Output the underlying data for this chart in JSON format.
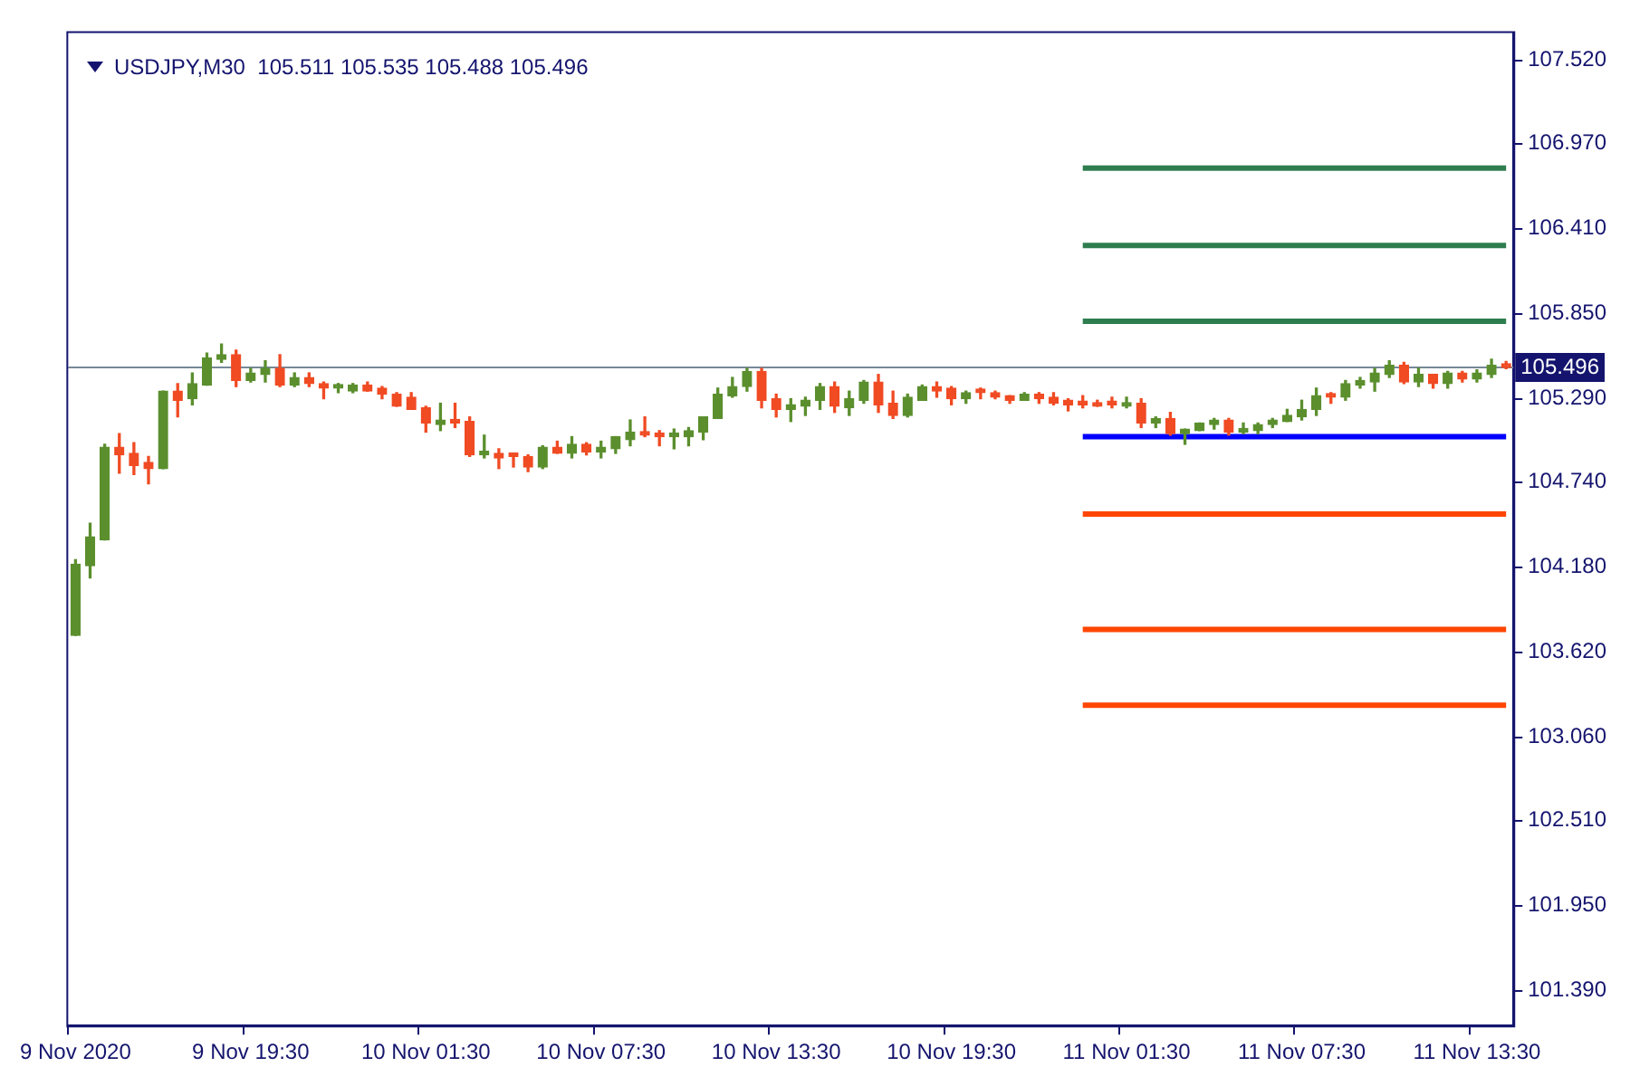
{
  "chart_data": {
    "type": "candlestick",
    "title": "USDJPY,M30  105.511 105.535 105.488 105.496",
    "categories": [
      "9 Nov 2020",
      null,
      null,
      null,
      null,
      null,
      null,
      null,
      null,
      null,
      null,
      null,
      "9 Nov 19:30",
      null,
      null,
      null,
      null,
      null,
      null,
      null,
      null,
      null,
      null,
      null,
      "10 Nov 01:30",
      null,
      null,
      null,
      null,
      null,
      null,
      null,
      null,
      null,
      null,
      null,
      "10 Nov 07:30",
      null,
      null,
      null,
      null,
      null,
      null,
      null,
      null,
      null,
      null,
      null,
      "10 Nov 13:30",
      null,
      null,
      null,
      null,
      null,
      null,
      null,
      null,
      null,
      null,
      null,
      "10 Nov 19:30",
      null,
      null,
      null,
      null,
      null,
      null,
      null,
      null,
      null,
      null,
      null,
      "11 Nov 01:30",
      null,
      null,
      null,
      null,
      null,
      null,
      null,
      null,
      null,
      null,
      null,
      "11 Nov 07:30",
      null,
      null,
      null,
      null,
      null,
      null,
      null,
      null,
      null,
      null,
      null,
      "11 Nov 13:30",
      null,
      null
    ],
    "ohlc": [
      [
        103.73,
        104.23,
        103.73,
        104.2
      ],
      [
        104.19,
        104.47,
        104.11,
        104.38
      ],
      [
        104.36,
        104.99,
        104.36,
        104.97
      ],
      [
        104.97,
        105.06,
        104.8,
        104.92
      ],
      [
        104.93,
        105.0,
        104.79,
        104.85
      ],
      [
        104.87,
        104.91,
        104.73,
        104.83
      ],
      [
        104.83,
        105.34,
        104.83,
        105.34
      ],
      [
        105.34,
        105.39,
        105.17,
        105.28
      ],
      [
        105.29,
        105.46,
        105.25,
        105.39
      ],
      [
        105.38,
        105.59,
        105.38,
        105.56
      ],
      [
        105.55,
        105.65,
        105.53,
        105.58
      ],
      [
        105.58,
        105.61,
        105.37,
        105.41
      ],
      [
        105.41,
        105.49,
        105.4,
        105.46
      ],
      [
        105.45,
        105.54,
        105.4,
        105.49
      ],
      [
        105.49,
        105.58,
        105.37,
        105.38
      ],
      [
        105.38,
        105.46,
        105.37,
        105.43
      ],
      [
        105.43,
        105.46,
        105.37,
        105.39
      ],
      [
        105.39,
        105.4,
        105.29,
        105.36
      ],
      [
        105.36,
        105.39,
        105.33,
        105.38
      ],
      [
        105.34,
        105.39,
        105.33,
        105.38
      ],
      [
        105.38,
        105.4,
        105.34,
        105.34
      ],
      [
        105.36,
        105.37,
        105.29,
        105.32
      ],
      [
        105.32,
        105.33,
        105.24,
        105.24
      ],
      [
        105.3,
        105.33,
        105.22,
        105.22
      ],
      [
        105.23,
        105.24,
        105.07,
        105.13
      ],
      [
        105.12,
        105.26,
        105.08,
        105.15
      ],
      [
        105.15,
        105.26,
        105.1,
        105.13
      ],
      [
        105.14,
        105.17,
        104.91,
        104.92
      ],
      [
        104.92,
        105.05,
        104.9,
        104.93
      ],
      [
        104.93,
        104.96,
        104.83,
        104.9
      ],
      [
        104.92,
        104.93,
        104.84,
        104.91
      ],
      [
        104.91,
        104.92,
        104.81,
        104.84
      ],
      [
        104.84,
        104.98,
        104.83,
        104.97
      ],
      [
        104.97,
        105.01,
        104.93,
        104.93
      ],
      [
        104.93,
        105.04,
        104.9,
        104.99
      ],
      [
        104.99,
        105.0,
        104.92,
        104.94
      ],
      [
        104.94,
        105.01,
        104.9,
        104.97
      ],
      [
        104.96,
        105.04,
        104.93,
        105.04
      ],
      [
        105.02,
        105.15,
        104.98,
        105.07
      ],
      [
        105.07,
        105.17,
        105.04,
        105.05
      ],
      [
        105.06,
        105.08,
        104.98,
        105.04
      ],
      [
        105.04,
        105.09,
        104.96,
        105.05
      ],
      [
        105.04,
        105.1,
        104.98,
        105.08
      ],
      [
        105.07,
        105.17,
        105.02,
        105.17
      ],
      [
        105.16,
        105.36,
        105.16,
        105.32
      ],
      [
        105.31,
        105.43,
        105.3,
        105.37
      ],
      [
        105.37,
        105.49,
        105.34,
        105.47
      ],
      [
        105.47,
        105.49,
        105.23,
        105.28
      ],
      [
        105.29,
        105.32,
        105.17,
        105.22
      ],
      [
        105.22,
        105.29,
        105.14,
        105.25
      ],
      [
        105.24,
        105.3,
        105.18,
        105.28
      ],
      [
        105.28,
        105.39,
        105.22,
        105.37
      ],
      [
        105.37,
        105.4,
        105.2,
        105.24
      ],
      [
        105.23,
        105.34,
        105.18,
        105.29
      ],
      [
        105.28,
        105.41,
        105.26,
        105.4
      ],
      [
        105.4,
        105.45,
        105.2,
        105.25
      ],
      [
        105.26,
        105.34,
        105.16,
        105.18
      ],
      [
        105.18,
        105.32,
        105.17,
        105.3
      ],
      [
        105.28,
        105.38,
        105.28,
        105.37
      ],
      [
        105.37,
        105.4,
        105.3,
        105.34
      ],
      [
        105.36,
        105.37,
        105.25,
        105.29
      ],
      [
        105.29,
        105.34,
        105.26,
        105.33
      ],
      [
        105.34,
        105.36,
        105.29,
        105.33
      ],
      [
        105.33,
        105.34,
        105.29,
        105.3
      ],
      [
        105.31,
        105.31,
        105.26,
        105.28
      ],
      [
        105.28,
        105.33,
        105.28,
        105.32
      ],
      [
        105.32,
        105.33,
        105.26,
        105.29
      ],
      [
        105.3,
        105.33,
        105.25,
        105.26
      ],
      [
        105.28,
        105.29,
        105.21,
        105.25
      ],
      [
        105.26,
        105.31,
        105.23,
        105.25
      ],
      [
        105.26,
        105.28,
        105.24,
        105.24
      ],
      [
        105.26,
        105.3,
        105.23,
        105.25
      ],
      [
        105.24,
        105.3,
        105.23,
        105.26
      ],
      [
        105.26,
        105.29,
        105.1,
        105.13
      ],
      [
        105.13,
        105.17,
        105.1,
        105.16
      ],
      [
        105.16,
        105.2,
        105.05,
        105.06
      ],
      [
        105.06,
        105.09,
        104.99,
        105.09
      ],
      [
        105.08,
        105.13,
        105.08,
        105.13
      ],
      [
        105.12,
        105.16,
        105.09,
        105.15
      ],
      [
        105.15,
        105.16,
        105.05,
        105.07
      ],
      [
        105.07,
        105.13,
        105.06,
        105.09
      ],
      [
        105.08,
        105.13,
        105.06,
        105.12
      ],
      [
        105.12,
        105.16,
        105.1,
        105.15
      ],
      [
        105.14,
        105.22,
        105.14,
        105.18
      ],
      [
        105.17,
        105.28,
        105.15,
        105.22
      ],
      [
        105.22,
        105.36,
        105.18,
        105.31
      ],
      [
        105.31,
        105.33,
        105.26,
        105.3
      ],
      [
        105.3,
        105.41,
        105.28,
        105.39
      ],
      [
        105.38,
        105.43,
        105.36,
        105.41
      ],
      [
        105.4,
        105.49,
        105.34,
        105.46
      ],
      [
        105.45,
        105.54,
        105.43,
        105.51
      ],
      [
        105.51,
        105.53,
        105.39,
        105.4
      ],
      [
        105.4,
        105.49,
        105.37,
        105.45
      ],
      [
        105.45,
        105.45,
        105.36,
        105.39
      ],
      [
        105.39,
        105.47,
        105.36,
        105.46
      ],
      [
        105.46,
        105.47,
        105.4,
        105.42
      ],
      [
        105.42,
        105.48,
        105.4,
        105.46
      ],
      [
        105.45,
        105.55,
        105.43,
        105.51
      ],
      [
        105.511,
        105.535,
        105.488,
        105.496
      ]
    ],
    "series": [
      {
        "type": "line",
        "color": "#2e7d4f",
        "values": [
          null,
          null,
          null,
          null,
          null,
          null,
          null,
          null,
          null,
          null,
          null,
          null,
          null,
          null,
          null,
          null,
          null,
          null,
          null,
          null,
          null,
          null,
          null,
          null,
          null,
          null,
          null,
          null,
          null,
          null,
          null,
          null,
          null,
          null,
          null,
          null,
          null,
          null,
          null,
          null,
          null,
          null,
          null,
          null,
          null,
          null,
          null,
          null,
          null,
          null,
          null,
          null,
          null,
          null,
          null,
          null,
          null,
          null,
          null,
          null,
          null,
          null,
          null,
          null,
          null,
          null,
          null,
          null,
          null,
          106.81,
          106.81,
          106.81,
          106.81,
          106.81,
          106.81,
          106.81,
          106.81,
          106.81,
          106.81,
          106.81,
          106.81,
          106.81,
          106.81,
          106.81,
          106.81,
          106.81,
          106.81,
          106.81,
          106.81,
          106.81,
          106.81,
          106.81,
          106.81,
          106.81,
          106.81,
          106.81,
          106.81,
          106.81,
          106.81
        ]
      },
      {
        "type": "line",
        "color": "#2e7d4f",
        "values": [
          null,
          null,
          null,
          null,
          null,
          null,
          null,
          null,
          null,
          null,
          null,
          null,
          null,
          null,
          null,
          null,
          null,
          null,
          null,
          null,
          null,
          null,
          null,
          null,
          null,
          null,
          null,
          null,
          null,
          null,
          null,
          null,
          null,
          null,
          null,
          null,
          null,
          null,
          null,
          null,
          null,
          null,
          null,
          null,
          null,
          null,
          null,
          null,
          null,
          null,
          null,
          null,
          null,
          null,
          null,
          null,
          null,
          null,
          null,
          null,
          null,
          null,
          null,
          null,
          null,
          null,
          null,
          null,
          null,
          106.3,
          106.3,
          106.3,
          106.3,
          106.3,
          106.3,
          106.3,
          106.3,
          106.3,
          106.3,
          106.3,
          106.3,
          106.3,
          106.3,
          106.3,
          106.3,
          106.3,
          106.3,
          106.3,
          106.3,
          106.3,
          106.3,
          106.3,
          106.3,
          106.3,
          106.3,
          106.3,
          106.3,
          106.3,
          106.3
        ]
      },
      {
        "type": "line",
        "color": "#2e7d4f",
        "values": [
          null,
          null,
          null,
          null,
          null,
          null,
          null,
          null,
          null,
          null,
          null,
          null,
          null,
          null,
          null,
          null,
          null,
          null,
          null,
          null,
          null,
          null,
          null,
          null,
          null,
          null,
          null,
          null,
          null,
          null,
          null,
          null,
          null,
          null,
          null,
          null,
          null,
          null,
          null,
          null,
          null,
          null,
          null,
          null,
          null,
          null,
          null,
          null,
          null,
          null,
          null,
          null,
          null,
          null,
          null,
          null,
          null,
          null,
          null,
          null,
          null,
          null,
          null,
          null,
          null,
          null,
          null,
          null,
          null,
          105.8,
          105.8,
          105.8,
          105.8,
          105.8,
          105.8,
          105.8,
          105.8,
          105.8,
          105.8,
          105.8,
          105.8,
          105.8,
          105.8,
          105.8,
          105.8,
          105.8,
          105.8,
          105.8,
          105.8,
          105.8,
          105.8,
          105.8,
          105.8,
          105.8,
          105.8,
          105.8,
          105.8,
          105.8,
          105.8
        ]
      },
      {
        "type": "line",
        "color": "#0000ff",
        "values": [
          null,
          null,
          null,
          null,
          null,
          null,
          null,
          null,
          null,
          null,
          null,
          null,
          null,
          null,
          null,
          null,
          null,
          null,
          null,
          null,
          null,
          null,
          null,
          null,
          null,
          null,
          null,
          null,
          null,
          null,
          null,
          null,
          null,
          null,
          null,
          null,
          null,
          null,
          null,
          null,
          null,
          null,
          null,
          null,
          null,
          null,
          null,
          null,
          null,
          null,
          null,
          null,
          null,
          null,
          null,
          null,
          null,
          null,
          null,
          null,
          null,
          null,
          null,
          null,
          null,
          null,
          null,
          null,
          null,
          105.04,
          105.04,
          105.04,
          105.04,
          105.04,
          105.04,
          105.04,
          105.04,
          105.04,
          105.04,
          105.04,
          105.04,
          105.04,
          105.04,
          105.04,
          105.04,
          105.04,
          105.04,
          105.04,
          105.04,
          105.04,
          105.04,
          105.04,
          105.04,
          105.04,
          105.04,
          105.04,
          105.04,
          105.04,
          105.04
        ]
      },
      {
        "type": "line",
        "color": "#ff4500",
        "values": [
          null,
          null,
          null,
          null,
          null,
          null,
          null,
          null,
          null,
          null,
          null,
          null,
          null,
          null,
          null,
          null,
          null,
          null,
          null,
          null,
          null,
          null,
          null,
          null,
          null,
          null,
          null,
          null,
          null,
          null,
          null,
          null,
          null,
          null,
          null,
          null,
          null,
          null,
          null,
          null,
          null,
          null,
          null,
          null,
          null,
          null,
          null,
          null,
          null,
          null,
          null,
          null,
          null,
          null,
          null,
          null,
          null,
          null,
          null,
          null,
          null,
          null,
          null,
          null,
          null,
          null,
          null,
          null,
          null,
          104.53,
          104.53,
          104.53,
          104.53,
          104.53,
          104.53,
          104.53,
          104.53,
          104.53,
          104.53,
          104.53,
          104.53,
          104.53,
          104.53,
          104.53,
          104.53,
          104.53,
          104.53,
          104.53,
          104.53,
          104.53,
          104.53,
          104.53,
          104.53,
          104.53,
          104.53,
          104.53,
          104.53,
          104.53,
          104.53
        ]
      },
      {
        "type": "line",
        "color": "#ff4500",
        "values": [
          null,
          null,
          null,
          null,
          null,
          null,
          null,
          null,
          null,
          null,
          null,
          null,
          null,
          null,
          null,
          null,
          null,
          null,
          null,
          null,
          null,
          null,
          null,
          null,
          null,
          null,
          null,
          null,
          null,
          null,
          null,
          null,
          null,
          null,
          null,
          null,
          null,
          null,
          null,
          null,
          null,
          null,
          null,
          null,
          null,
          null,
          null,
          null,
          null,
          null,
          null,
          null,
          null,
          null,
          null,
          null,
          null,
          null,
          null,
          null,
          null,
          null,
          null,
          null,
          null,
          null,
          null,
          null,
          null,
          103.77,
          103.77,
          103.77,
          103.77,
          103.77,
          103.77,
          103.77,
          103.77,
          103.77,
          103.77,
          103.77,
          103.77,
          103.77,
          103.77,
          103.77,
          103.77,
          103.77,
          103.77,
          103.77,
          103.77,
          103.77,
          103.77,
          103.77,
          103.77,
          103.77,
          103.77,
          103.77,
          103.77,
          103.77,
          103.77
        ]
      },
      {
        "type": "line",
        "color": "#ff4500",
        "values": [
          null,
          null,
          null,
          null,
          null,
          null,
          null,
          null,
          null,
          null,
          null,
          null,
          null,
          null,
          null,
          null,
          null,
          null,
          null,
          null,
          null,
          null,
          null,
          null,
          null,
          null,
          null,
          null,
          null,
          null,
          null,
          null,
          null,
          null,
          null,
          null,
          null,
          null,
          null,
          null,
          null,
          null,
          null,
          null,
          null,
          null,
          null,
          null,
          null,
          null,
          null,
          null,
          null,
          null,
          null,
          null,
          null,
          null,
          null,
          null,
          null,
          null,
          null,
          null,
          null,
          null,
          null,
          null,
          null,
          103.27,
          103.27,
          103.27,
          103.27,
          103.27,
          103.27,
          103.27,
          103.27,
          103.27,
          103.27,
          103.27,
          103.27,
          103.27,
          103.27,
          103.27,
          103.27,
          103.27,
          103.27,
          103.27,
          103.27,
          103.27,
          103.27,
          103.27,
          103.27,
          103.27,
          103.27,
          103.27,
          103.27,
          103.27,
          103.27
        ]
      }
    ],
    "ref_lines": [
      {
        "axis": "y",
        "value": 105.496,
        "label": "105.496",
        "color": "#778899"
      }
    ],
    "ylim": [
      101.16,
      107.7
    ],
    "yticks": [
      {
        "value": 101.39,
        "label": "101.390"
      },
      {
        "value": 101.95,
        "label": "101.950"
      },
      {
        "value": 102.51,
        "label": "102.510"
      },
      {
        "value": 103.06,
        "label": "103.060"
      },
      {
        "value": 103.62,
        "label": "103.620"
      },
      {
        "value": 104.18,
        "label": "104.180"
      },
      {
        "value": 104.74,
        "label": "104.740"
      },
      {
        "value": 105.29,
        "label": "105.290"
      },
      {
        "value": 105.85,
        "label": "105.850"
      },
      {
        "value": 106.41,
        "label": "106.410"
      },
      {
        "value": 106.97,
        "label": "106.970"
      },
      {
        "value": 107.52,
        "label": "107.520"
      }
    ],
    "marker": "none",
    "line_style": "solid"
  }
}
